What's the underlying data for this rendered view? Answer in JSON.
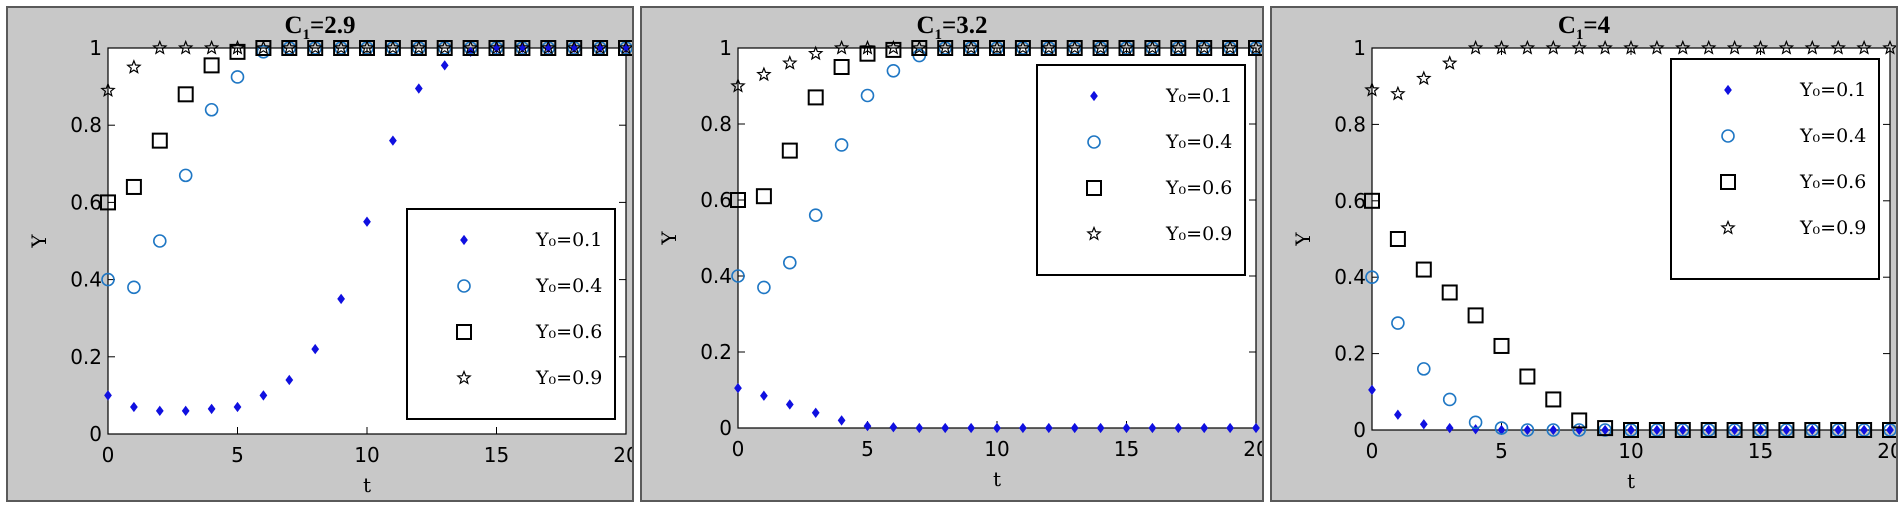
{
  "chart_data": [
    {
      "type": "scatter",
      "title_main": "C",
      "title_sub": "1",
      "title_value": "=2.9",
      "xlabel": "t",
      "ylabel": "Y",
      "xlim": [
        0,
        20
      ],
      "ylim": [
        0,
        1
      ],
      "xticks": [
        0,
        5,
        10,
        15,
        20
      ],
      "yticks": [
        0,
        0.2,
        0.4,
        0.6,
        0.8,
        1
      ],
      "ytick_labels": [
        "0",
        "0.2",
        "0.4",
        "0.6",
        "0.8",
        "1"
      ],
      "legend_position": "bottom-right",
      "series": [
        {
          "name": "Y₀=0.1",
          "marker": "diamond",
          "color": "#1010e0",
          "x": [
            0,
            1,
            2,
            3,
            4,
            5,
            6,
            7,
            8,
            9,
            10,
            11,
            12,
            13,
            14,
            15,
            16,
            17,
            18,
            19,
            20
          ],
          "y": [
            0.1,
            0.07,
            0.06,
            0.06,
            0.065,
            0.07,
            0.1,
            0.14,
            0.22,
            0.35,
            0.55,
            0.76,
            0.895,
            0.955,
            0.99,
            1,
            1,
            1,
            1,
            1,
            1
          ]
        },
        {
          "name": "Y₀=0.4",
          "marker": "circle",
          "color": "#1f77c4",
          "x": [
            0,
            1,
            2,
            3,
            4,
            5,
            6,
            7,
            8,
            9,
            10,
            11,
            12,
            13,
            14,
            15,
            16,
            17,
            18,
            19,
            20
          ],
          "y": [
            0.4,
            0.38,
            0.5,
            0.67,
            0.84,
            0.925,
            0.99,
            1,
            1,
            1,
            1,
            1,
            1,
            1,
            1,
            1,
            1,
            1,
            1,
            1,
            1
          ]
        },
        {
          "name": "Y₀=0.6",
          "marker": "square",
          "color": "#000000",
          "x": [
            0,
            1,
            2,
            3,
            4,
            5,
            6,
            7,
            8,
            9,
            10,
            11,
            12,
            13,
            14,
            15,
            16,
            17,
            18,
            19,
            20
          ],
          "y": [
            0.6,
            0.64,
            0.76,
            0.88,
            0.955,
            0.99,
            1,
            1,
            1,
            1,
            1,
            1,
            1,
            1,
            1,
            1,
            1,
            1,
            1,
            1,
            1
          ]
        },
        {
          "name": "Y₀=0.9",
          "marker": "star",
          "color": "#000000",
          "x": [
            0,
            1,
            2,
            3,
            4,
            5,
            6,
            7,
            8,
            9,
            10,
            11,
            12,
            13,
            14,
            15,
            16,
            17,
            18,
            19,
            20
          ],
          "y": [
            0.89,
            0.95,
            1,
            1,
            1,
            1,
            1,
            1,
            1,
            1,
            1,
            1,
            1,
            1,
            1,
            1,
            1,
            1,
            1,
            1,
            1
          ]
        }
      ]
    },
    {
      "type": "scatter",
      "title_main": "C",
      "title_sub": "1",
      "title_value": "=3.2",
      "xlabel": "t",
      "ylabel": "Y",
      "xlim": [
        0,
        20
      ],
      "ylim": [
        0,
        1
      ],
      "xticks": [
        0,
        5,
        10,
        15,
        20
      ],
      "yticks": [
        0,
        0.2,
        0.4,
        0.6,
        0.8,
        1
      ],
      "ytick_labels": [
        "0",
        "0.2",
        "0.4",
        "0.6",
        "0.8",
        "1"
      ],
      "legend_position": "top-right",
      "series": [
        {
          "name": "Y₀=0.1",
          "marker": "diamond",
          "color": "#1010e0",
          "x": [
            0,
            1,
            2,
            3,
            4,
            5,
            6,
            7,
            8,
            9,
            10,
            11,
            12,
            13,
            14,
            15,
            16,
            17,
            18,
            19,
            20
          ],
          "y": [
            0.105,
            0.085,
            0.062,
            0.04,
            0.02,
            0.005,
            0.002,
            0,
            0,
            0,
            0,
            0,
            0,
            0,
            0,
            0,
            0,
            0,
            0,
            0,
            0
          ]
        },
        {
          "name": "Y₀=0.4",
          "marker": "circle",
          "color": "#1f77c4",
          "x": [
            0,
            1,
            2,
            3,
            4,
            5,
            6,
            7,
            8,
            9,
            10,
            11,
            12,
            13,
            14,
            15,
            16,
            17,
            18,
            19,
            20
          ],
          "y": [
            0.4,
            0.37,
            0.435,
            0.56,
            0.745,
            0.875,
            0.94,
            0.98,
            1,
            1,
            1,
            1,
            1,
            1,
            1,
            1,
            1,
            1,
            1,
            1,
            1
          ]
        },
        {
          "name": "Y₀=0.6",
          "marker": "square",
          "color": "#000000",
          "x": [
            0,
            1,
            2,
            3,
            4,
            5,
            6,
            7,
            8,
            9,
            10,
            11,
            12,
            13,
            14,
            15,
            16,
            17,
            18,
            19,
            20
          ],
          "y": [
            0.6,
            0.61,
            0.73,
            0.87,
            0.95,
            0.985,
            0.995,
            1,
            1,
            1,
            1,
            1,
            1,
            1,
            1,
            1,
            1,
            1,
            1,
            1,
            1
          ]
        },
        {
          "name": "Y₀=0.9",
          "marker": "star",
          "color": "#000000",
          "x": [
            0,
            1,
            2,
            3,
            4,
            5,
            6,
            7,
            8,
            9,
            10,
            11,
            12,
            13,
            14,
            15,
            16,
            17,
            18,
            19,
            20
          ],
          "y": [
            0.9,
            0.93,
            0.96,
            0.985,
            1,
            1,
            1,
            1,
            1,
            1,
            1,
            1,
            1,
            1,
            1,
            1,
            1,
            1,
            1,
            1,
            1
          ]
        }
      ]
    },
    {
      "type": "scatter",
      "title_main": "C",
      "title_sub": "1",
      "title_value": "=4",
      "xlabel": "t",
      "ylabel": "Y",
      "xlim": [
        0,
        20
      ],
      "ylim": [
        0,
        1
      ],
      "xticks": [
        0,
        5,
        10,
        15,
        20
      ],
      "yticks": [
        0,
        0.2,
        0.4,
        0.6,
        0.8,
        1
      ],
      "ytick_labels": [
        "0",
        "0.2",
        "0.4",
        "0.6",
        "0.8",
        "1"
      ],
      "legend_position": "top-right",
      "series": [
        {
          "name": "Y₀=0.1",
          "marker": "diamond",
          "color": "#1010e0",
          "x": [
            0,
            1,
            2,
            3,
            4,
            5,
            6,
            7,
            8,
            9,
            10,
            11,
            12,
            13,
            14,
            15,
            16,
            17,
            18,
            19,
            20
          ],
          "y": [
            0.105,
            0.04,
            0.015,
            0.005,
            0.002,
            0,
            0,
            0,
            0,
            0,
            0,
            0,
            0,
            0,
            0,
            0,
            0,
            0,
            0,
            0,
            0
          ]
        },
        {
          "name": "Y₀=0.4",
          "marker": "circle",
          "color": "#1f77c4",
          "x": [
            0,
            1,
            2,
            3,
            4,
            5,
            6,
            7,
            8,
            9,
            10,
            11,
            12,
            13,
            14,
            15,
            16,
            17,
            18,
            19,
            20
          ],
          "y": [
            0.4,
            0.28,
            0.16,
            0.08,
            0.02,
            0.005,
            0,
            0,
            0,
            0,
            0,
            0,
            0,
            0,
            0,
            0,
            0,
            0,
            0,
            0,
            0
          ]
        },
        {
          "name": "Y₀=0.6",
          "marker": "square",
          "color": "#000000",
          "x": [
            0,
            1,
            2,
            3,
            4,
            5,
            6,
            7,
            8,
            9,
            10,
            11,
            12,
            13,
            14,
            15,
            16,
            17,
            18,
            19,
            20
          ],
          "y": [
            0.6,
            0.5,
            0.42,
            0.36,
            0.3,
            0.22,
            0.14,
            0.08,
            0.025,
            0.005,
            0,
            0,
            0,
            0,
            0,
            0,
            0,
            0,
            0,
            0,
            0
          ]
        },
        {
          "name": "Y₀=0.9",
          "marker": "star",
          "color": "#000000",
          "x": [
            0,
            1,
            2,
            3,
            4,
            5,
            6,
            7,
            8,
            9,
            10,
            11,
            12,
            13,
            14,
            15,
            16,
            17,
            18,
            19,
            20
          ],
          "y": [
            0.89,
            0.88,
            0.92,
            0.96,
            1,
            1,
            1,
            1,
            1,
            1,
            1,
            1,
            1,
            1,
            1,
            1,
            1,
            1,
            1,
            1,
            1
          ]
        }
      ]
    }
  ]
}
